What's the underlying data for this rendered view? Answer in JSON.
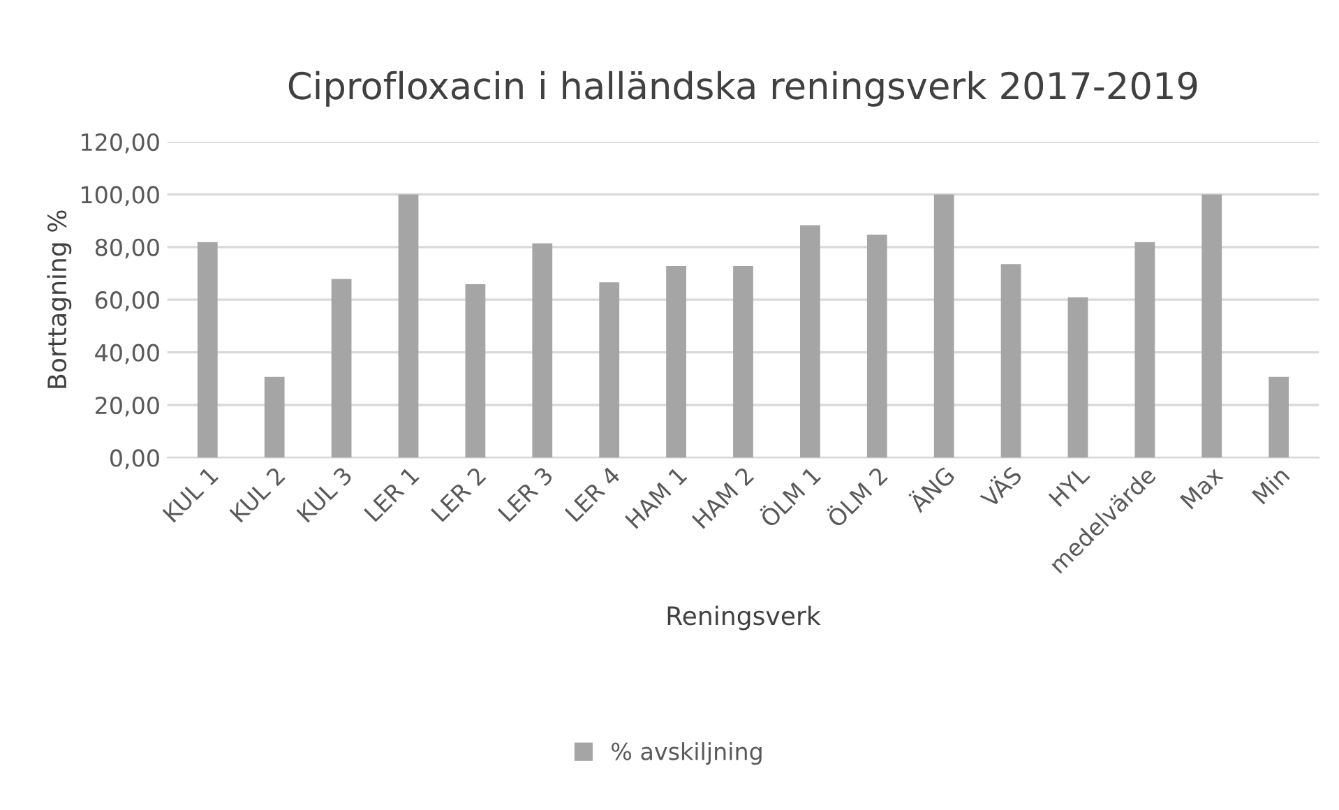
{
  "chart_data": {
    "type": "bar",
    "title": "Ciprofloxacin i halländska reningsverk 2017-2019",
    "xlabel": "Reningsverk",
    "ylabel": "Borttagning %",
    "categories": [
      "KUL 1",
      "KUL 2",
      "KUL 3",
      "LER 1",
      "LER 2",
      "LER 3",
      "LER 4",
      "HAM 1",
      "HAM 2",
      "ÖLM 1",
      "ÖLM 2",
      "ÄNG",
      "VÄS",
      "HYL",
      "medelvärde",
      "Max",
      "Min"
    ],
    "series": [
      {
        "name": "% avskiljning",
        "color": "#a5a5a5",
        "values": [
          81.9,
          30.7,
          67.9,
          100,
          65.9,
          81.4,
          66.6,
          72.8,
          72.8,
          88.3,
          84.7,
          100,
          73.5,
          60.9,
          81.9,
          100,
          30.7
        ]
      }
    ],
    "ylim": [
      0,
      120
    ],
    "yticks": [
      {
        "value": 0,
        "label": "0,00"
      },
      {
        "value": 20,
        "label": "20,00"
      },
      {
        "value": 40,
        "label": "40,00"
      },
      {
        "value": 60,
        "label": "60,00"
      },
      {
        "value": 80,
        "label": "80,00"
      },
      {
        "value": 100,
        "label": "100,00"
      },
      {
        "value": 120,
        "label": "120,00"
      }
    ],
    "grid": "y",
    "legend": "bottom"
  }
}
